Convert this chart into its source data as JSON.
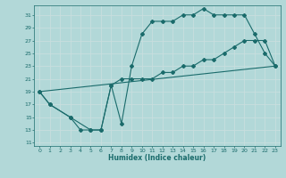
{
  "xlabel": "Humidex (Indice chaleur)",
  "bg_color": "#b2d8d8",
  "grid_color": "#d4e8e8",
  "line_color": "#1a6b6b",
  "xlim": [
    -0.5,
    23.5
  ],
  "ylim": [
    10.5,
    32.5
  ],
  "xticks": [
    0,
    1,
    2,
    3,
    4,
    5,
    6,
    7,
    8,
    9,
    10,
    11,
    12,
    13,
    14,
    15,
    16,
    17,
    18,
    19,
    20,
    21,
    22,
    23
  ],
  "yticks": [
    11,
    13,
    15,
    17,
    19,
    21,
    23,
    25,
    27,
    29,
    31
  ],
  "line1_x": [
    0,
    1,
    3,
    4,
    5,
    6,
    7,
    8,
    9,
    10,
    11,
    12,
    13,
    14,
    15,
    16,
    17,
    18,
    19,
    20,
    21,
    22,
    23
  ],
  "line1_y": [
    19,
    17,
    15,
    13,
    13,
    13,
    20,
    14,
    23,
    28,
    30,
    30,
    30,
    31,
    31,
    32,
    31,
    31,
    31,
    31,
    28,
    25,
    23
  ],
  "line2_x": [
    0,
    1,
    3,
    5,
    6,
    7,
    8,
    9,
    10,
    11,
    12,
    13,
    14,
    15,
    16,
    17,
    18,
    19,
    20,
    21,
    22,
    23
  ],
  "line2_y": [
    19,
    17,
    15,
    13,
    13,
    20,
    21,
    21,
    21,
    21,
    22,
    22,
    23,
    23,
    24,
    24,
    25,
    26,
    27,
    27,
    27,
    23
  ],
  "line3_x": [
    0,
    23
  ],
  "line3_y": [
    19,
    23
  ]
}
